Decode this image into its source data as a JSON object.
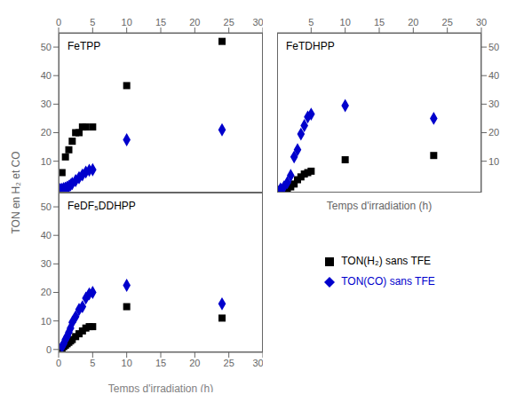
{
  "chart_data": [
    {
      "type": "scatter",
      "title": "FeTPP",
      "ylabel": "TON en H₂ et CO",
      "series": [
        {
          "name": "TON(H₂) sans TFE",
          "color": "#000000",
          "marker": "square",
          "x": [
            0.5,
            1.0,
            1.5,
            2.0,
            2.5,
            3.0,
            3.5,
            4.0,
            5.0,
            10.0,
            24.0
          ],
          "values": [
            6,
            11.5,
            14,
            17,
            20,
            20,
            22,
            22,
            22,
            36.5,
            52
          ]
        },
        {
          "name": "TON(CO) sans TFE",
          "color": "#0000cc",
          "marker": "diamond",
          "x": [
            0.25,
            0.5,
            0.75,
            1.0,
            1.25,
            1.5,
            1.75,
            2.0,
            2.5,
            3.0,
            3.5,
            4.0,
            4.5,
            5.0,
            10.0,
            24.0
          ],
          "values": [
            0.1,
            0.2,
            0.4,
            0.6,
            0.9,
            1.2,
            1.7,
            2.2,
            3.2,
            4.2,
            5.2,
            6.2,
            6.8,
            7.0,
            17.5,
            21.0
          ]
        }
      ],
      "xlim": [
        0,
        30
      ],
      "ylim": [
        -1,
        55
      ],
      "xticks": [
        0,
        5,
        10,
        15,
        20,
        25,
        30
      ],
      "yticks": [
        0,
        10,
        20,
        30,
        40,
        50
      ]
    },
    {
      "type": "scatter",
      "title": "FeTDHPP",
      "xlabel": "Temps d'irradiation (h)",
      "legend": "lower right",
      "series": [
        {
          "name": "TON(H₂) sans TFE",
          "color": "#000000",
          "marker": "square",
          "x": [
            0.5,
            1.0,
            1.5,
            2.0,
            2.5,
            3.0,
            3.5,
            4.0,
            4.5,
            5.0,
            10.0,
            23.0
          ],
          "values": [
            0.1,
            0.2,
            0.5,
            1.0,
            2.0,
            3.5,
            4.5,
            5.5,
            6.0,
            6.5,
            10.5,
            12.0
          ]
        },
        {
          "name": "TON(CO) sans TFE",
          "color": "#0000cc",
          "marker": "diamond",
          "x": [
            0.5,
            1.0,
            1.5,
            2.0,
            2.5,
            3.0,
            3.5,
            4.0,
            4.5,
            5.0,
            10.0,
            23.0
          ],
          "values": [
            0.3,
            1.0,
            2.5,
            5.0,
            11.5,
            14.0,
            19.5,
            22.5,
            25.5,
            26.5,
            29.5,
            25.0
          ]
        }
      ],
      "xlim": [
        0,
        30
      ],
      "ylim": [
        -1,
        55
      ],
      "xticks": [
        0,
        5,
        10,
        15,
        20,
        25,
        30
      ],
      "yticks": [
        0,
        10,
        20,
        30,
        40,
        50
      ]
    },
    {
      "type": "scatter",
      "title": "FeDF₅DDHPP",
      "xlabel": "Temps d'irradiation (h)",
      "series": [
        {
          "name": "TON(H₂) sans TFE",
          "color": "#000000",
          "marker": "square",
          "x": [
            0.5,
            0.75,
            1.0,
            1.25,
            1.5,
            1.75,
            2.0,
            2.5,
            3.0,
            3.5,
            4.0,
            4.5,
            5.0,
            10.0,
            24.0
          ],
          "values": [
            0.5,
            1.0,
            1.5,
            2.0,
            2.5,
            3.0,
            3.5,
            4.5,
            5.5,
            6.5,
            7.5,
            8.0,
            8.0,
            15.0,
            11.0
          ]
        },
        {
          "name": "TON(CO) sans TFE",
          "color": "#0000cc",
          "marker": "diamond",
          "x": [
            0.5,
            0.75,
            1.0,
            1.25,
            1.5,
            1.75,
            2.0,
            2.5,
            3.0,
            3.5,
            4.0,
            4.5,
            5.0,
            10.0,
            24.0
          ],
          "values": [
            1.0,
            2.0,
            3.5,
            4.5,
            6.0,
            7.5,
            9.5,
            11.5,
            14.0,
            15.0,
            18.0,
            19.5,
            20.0,
            22.5,
            16.0
          ]
        }
      ],
      "xlim": [
        0,
        30
      ],
      "ylim": [
        -1,
        55
      ],
      "xticks": [
        0,
        5,
        10,
        15,
        20,
        25,
        30
      ],
      "yticks": [
        0,
        10,
        20,
        30,
        40,
        50
      ]
    }
  ]
}
